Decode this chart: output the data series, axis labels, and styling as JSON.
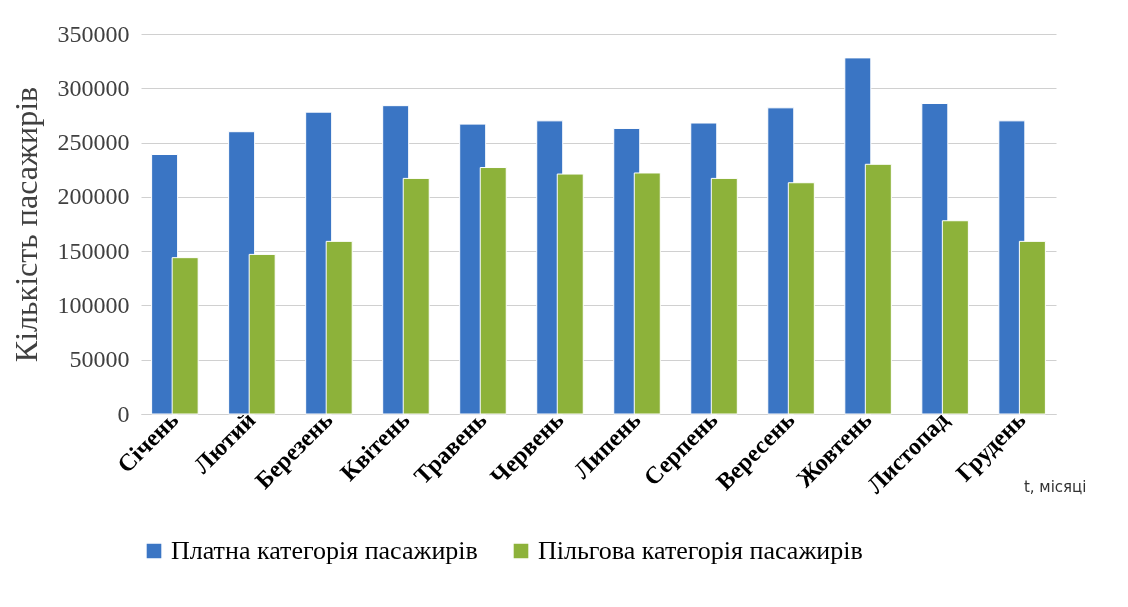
{
  "chart_data": {
    "type": "bar",
    "ylabel": "Кількість пасажирів",
    "xlabel": "t, місяці",
    "categories": [
      "Січень",
      "Лютий",
      "Березень",
      "Квітень",
      "Травень",
      "Червень",
      "Липень",
      "Серпень",
      "Вересень",
      "Жовтень",
      "Листопад",
      "Грудень"
    ],
    "series": [
      {
        "name": "Платна категорія пасажирів",
        "color": "#3a75c4",
        "values": [
          239000,
          260000,
          278000,
          284000,
          267000,
          270000,
          263000,
          268000,
          282000,
          328000,
          286000,
          270000
        ]
      },
      {
        "name": "Пільгова категорія пасажирів",
        "color": "#8db23a",
        "values": [
          144000,
          147000,
          159000,
          217000,
          227000,
          221000,
          222000,
          217000,
          213000,
          230000,
          178000,
          159000
        ]
      }
    ],
    "ylim": [
      0,
      350000
    ],
    "yticks": [
      0,
      50000,
      100000,
      150000,
      200000,
      250000,
      300000,
      350000
    ],
    "grid": "y",
    "legend": "bottom"
  }
}
